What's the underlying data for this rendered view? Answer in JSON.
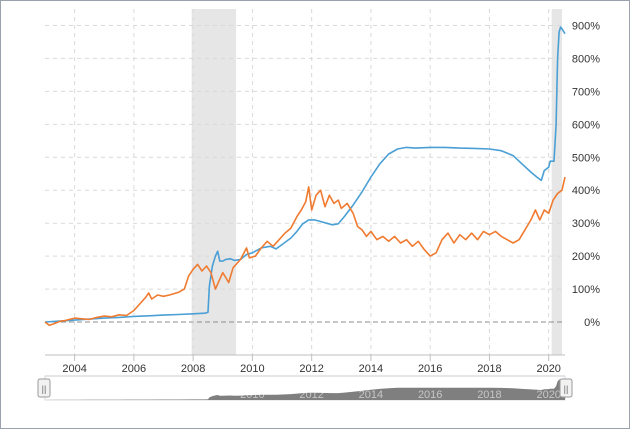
{
  "chart_data": {
    "type": "line",
    "title": "",
    "xlabel": "",
    "ylabel": "",
    "xlim": [
      2003.0,
      2020.55
    ],
    "ylim": [
      -100,
      950
    ],
    "grid": true,
    "y_ticks": [
      {
        "value": 0,
        "label": "0%"
      },
      {
        "value": 100,
        "label": "100%"
      },
      {
        "value": 200,
        "label": "200%"
      },
      {
        "value": 300,
        "label": "300%"
      },
      {
        "value": 400,
        "label": "400%"
      },
      {
        "value": 500,
        "label": "500%"
      },
      {
        "value": 600,
        "label": "600%"
      },
      {
        "value": 700,
        "label": "700%"
      },
      {
        "value": 800,
        "label": "800%"
      },
      {
        "value": 900,
        "label": "900%"
      }
    ],
    "x_ticks": [
      {
        "value": 2004,
        "label": "2004"
      },
      {
        "value": 2006,
        "label": "2006"
      },
      {
        "value": 2008,
        "label": "2008"
      },
      {
        "value": 2010,
        "label": "2010"
      },
      {
        "value": 2012,
        "label": "2012"
      },
      {
        "value": 2014,
        "label": "2014"
      },
      {
        "value": 2016,
        "label": "2016"
      },
      {
        "value": 2018,
        "label": "2018"
      },
      {
        "value": 2020,
        "label": "2020"
      }
    ],
    "recession_bands": [
      {
        "start": 2007.95,
        "end": 2009.45
      },
      {
        "start": 2020.1,
        "end": 2020.45
      }
    ],
    "series": [
      {
        "color": "#4a9fd5",
        "points": [
          [
            2003.0,
            0
          ],
          [
            2003.5,
            3
          ],
          [
            2004.0,
            6
          ],
          [
            2004.5,
            9
          ],
          [
            2005.0,
            12
          ],
          [
            2005.5,
            14
          ],
          [
            2006.0,
            17
          ],
          [
            2006.5,
            19
          ],
          [
            2007.0,
            21
          ],
          [
            2007.5,
            23
          ],
          [
            2008.0,
            25
          ],
          [
            2008.4,
            27
          ],
          [
            2008.5,
            30
          ],
          [
            2008.55,
            110
          ],
          [
            2008.65,
            170
          ],
          [
            2008.75,
            200
          ],
          [
            2008.83,
            215
          ],
          [
            2008.9,
            185
          ],
          [
            2009.0,
            185
          ],
          [
            2009.1,
            190
          ],
          [
            2009.25,
            192
          ],
          [
            2009.4,
            187
          ],
          [
            2009.6,
            190
          ],
          [
            2009.8,
            205
          ],
          [
            2010.0,
            210
          ],
          [
            2010.3,
            225
          ],
          [
            2010.6,
            230
          ],
          [
            2010.8,
            222
          ],
          [
            2011.0,
            235
          ],
          [
            2011.3,
            255
          ],
          [
            2011.5,
            275
          ],
          [
            2011.7,
            298
          ],
          [
            2011.9,
            310
          ],
          [
            2012.1,
            310
          ],
          [
            2012.3,
            305
          ],
          [
            2012.5,
            300
          ],
          [
            2012.7,
            295
          ],
          [
            2012.9,
            298
          ],
          [
            2013.1,
            320
          ],
          [
            2013.4,
            355
          ],
          [
            2013.7,
            395
          ],
          [
            2014.0,
            440
          ],
          [
            2014.3,
            480
          ],
          [
            2014.6,
            510
          ],
          [
            2014.9,
            525
          ],
          [
            2015.2,
            530
          ],
          [
            2015.5,
            528
          ],
          [
            2016.0,
            530
          ],
          [
            2016.5,
            530
          ],
          [
            2017.0,
            528
          ],
          [
            2017.5,
            527
          ],
          [
            2018.0,
            525
          ],
          [
            2018.4,
            520
          ],
          [
            2018.8,
            505
          ],
          [
            2019.1,
            480
          ],
          [
            2019.4,
            455
          ],
          [
            2019.6,
            440
          ],
          [
            2019.75,
            430
          ],
          [
            2019.85,
            460
          ],
          [
            2020.0,
            470
          ],
          [
            2020.05,
            488
          ],
          [
            2020.18,
            488
          ],
          [
            2020.25,
            600
          ],
          [
            2020.3,
            800
          ],
          [
            2020.35,
            880
          ],
          [
            2020.4,
            895
          ],
          [
            2020.45,
            890
          ],
          [
            2020.55,
            875
          ]
        ]
      },
      {
        "color": "#f07b30",
        "points": [
          [
            2003.0,
            0
          ],
          [
            2003.15,
            -10
          ],
          [
            2003.3,
            -5
          ],
          [
            2003.5,
            2
          ],
          [
            2003.7,
            5
          ],
          [
            2004.0,
            12
          ],
          [
            2004.25,
            10
          ],
          [
            2004.5,
            8
          ],
          [
            2004.75,
            14
          ],
          [
            2005.0,
            18
          ],
          [
            2005.25,
            16
          ],
          [
            2005.5,
            22
          ],
          [
            2005.75,
            20
          ],
          [
            2006.0,
            35
          ],
          [
            2006.2,
            55
          ],
          [
            2006.4,
            75
          ],
          [
            2006.5,
            88
          ],
          [
            2006.6,
            70
          ],
          [
            2006.8,
            82
          ],
          [
            2007.0,
            78
          ],
          [
            2007.2,
            82
          ],
          [
            2007.5,
            90
          ],
          [
            2007.7,
            100
          ],
          [
            2007.85,
            140
          ],
          [
            2008.0,
            160
          ],
          [
            2008.15,
            175
          ],
          [
            2008.3,
            155
          ],
          [
            2008.45,
            170
          ],
          [
            2008.6,
            150
          ],
          [
            2008.75,
            100
          ],
          [
            2008.9,
            130
          ],
          [
            2009.0,
            150
          ],
          [
            2009.2,
            120
          ],
          [
            2009.35,
            165
          ],
          [
            2009.6,
            190
          ],
          [
            2009.8,
            225
          ],
          [
            2009.9,
            195
          ],
          [
            2010.1,
            200
          ],
          [
            2010.3,
            225
          ],
          [
            2010.5,
            245
          ],
          [
            2010.7,
            230
          ],
          [
            2010.9,
            250
          ],
          [
            2011.1,
            270
          ],
          [
            2011.3,
            285
          ],
          [
            2011.5,
            320
          ],
          [
            2011.65,
            340
          ],
          [
            2011.8,
            365
          ],
          [
            2011.9,
            410
          ],
          [
            2012.0,
            340
          ],
          [
            2012.15,
            385
          ],
          [
            2012.3,
            400
          ],
          [
            2012.45,
            350
          ],
          [
            2012.6,
            385
          ],
          [
            2012.75,
            360
          ],
          [
            2012.9,
            370
          ],
          [
            2013.0,
            345
          ],
          [
            2013.2,
            360
          ],
          [
            2013.4,
            330
          ],
          [
            2013.55,
            290
          ],
          [
            2013.7,
            280
          ],
          [
            2013.85,
            260
          ],
          [
            2014.0,
            275
          ],
          [
            2014.2,
            250
          ],
          [
            2014.4,
            260
          ],
          [
            2014.6,
            245
          ],
          [
            2014.8,
            260
          ],
          [
            2015.0,
            240
          ],
          [
            2015.2,
            250
          ],
          [
            2015.4,
            230
          ],
          [
            2015.6,
            245
          ],
          [
            2015.8,
            220
          ],
          [
            2016.0,
            200
          ],
          [
            2016.2,
            210
          ],
          [
            2016.4,
            250
          ],
          [
            2016.6,
            270
          ],
          [
            2016.8,
            240
          ],
          [
            2017.0,
            265
          ],
          [
            2017.2,
            250
          ],
          [
            2017.4,
            270
          ],
          [
            2017.6,
            250
          ],
          [
            2017.8,
            275
          ],
          [
            2018.0,
            265
          ],
          [
            2018.2,
            275
          ],
          [
            2018.4,
            260
          ],
          [
            2018.6,
            250
          ],
          [
            2018.8,
            240
          ],
          [
            2019.0,
            250
          ],
          [
            2019.2,
            280
          ],
          [
            2019.4,
            310
          ],
          [
            2019.55,
            340
          ],
          [
            2019.7,
            310
          ],
          [
            2019.85,
            340
          ],
          [
            2020.0,
            330
          ],
          [
            2020.15,
            370
          ],
          [
            2020.3,
            390
          ],
          [
            2020.45,
            400
          ],
          [
            2020.55,
            440
          ]
        ]
      }
    ]
  },
  "navigator": {
    "handle_glyph": "||"
  }
}
